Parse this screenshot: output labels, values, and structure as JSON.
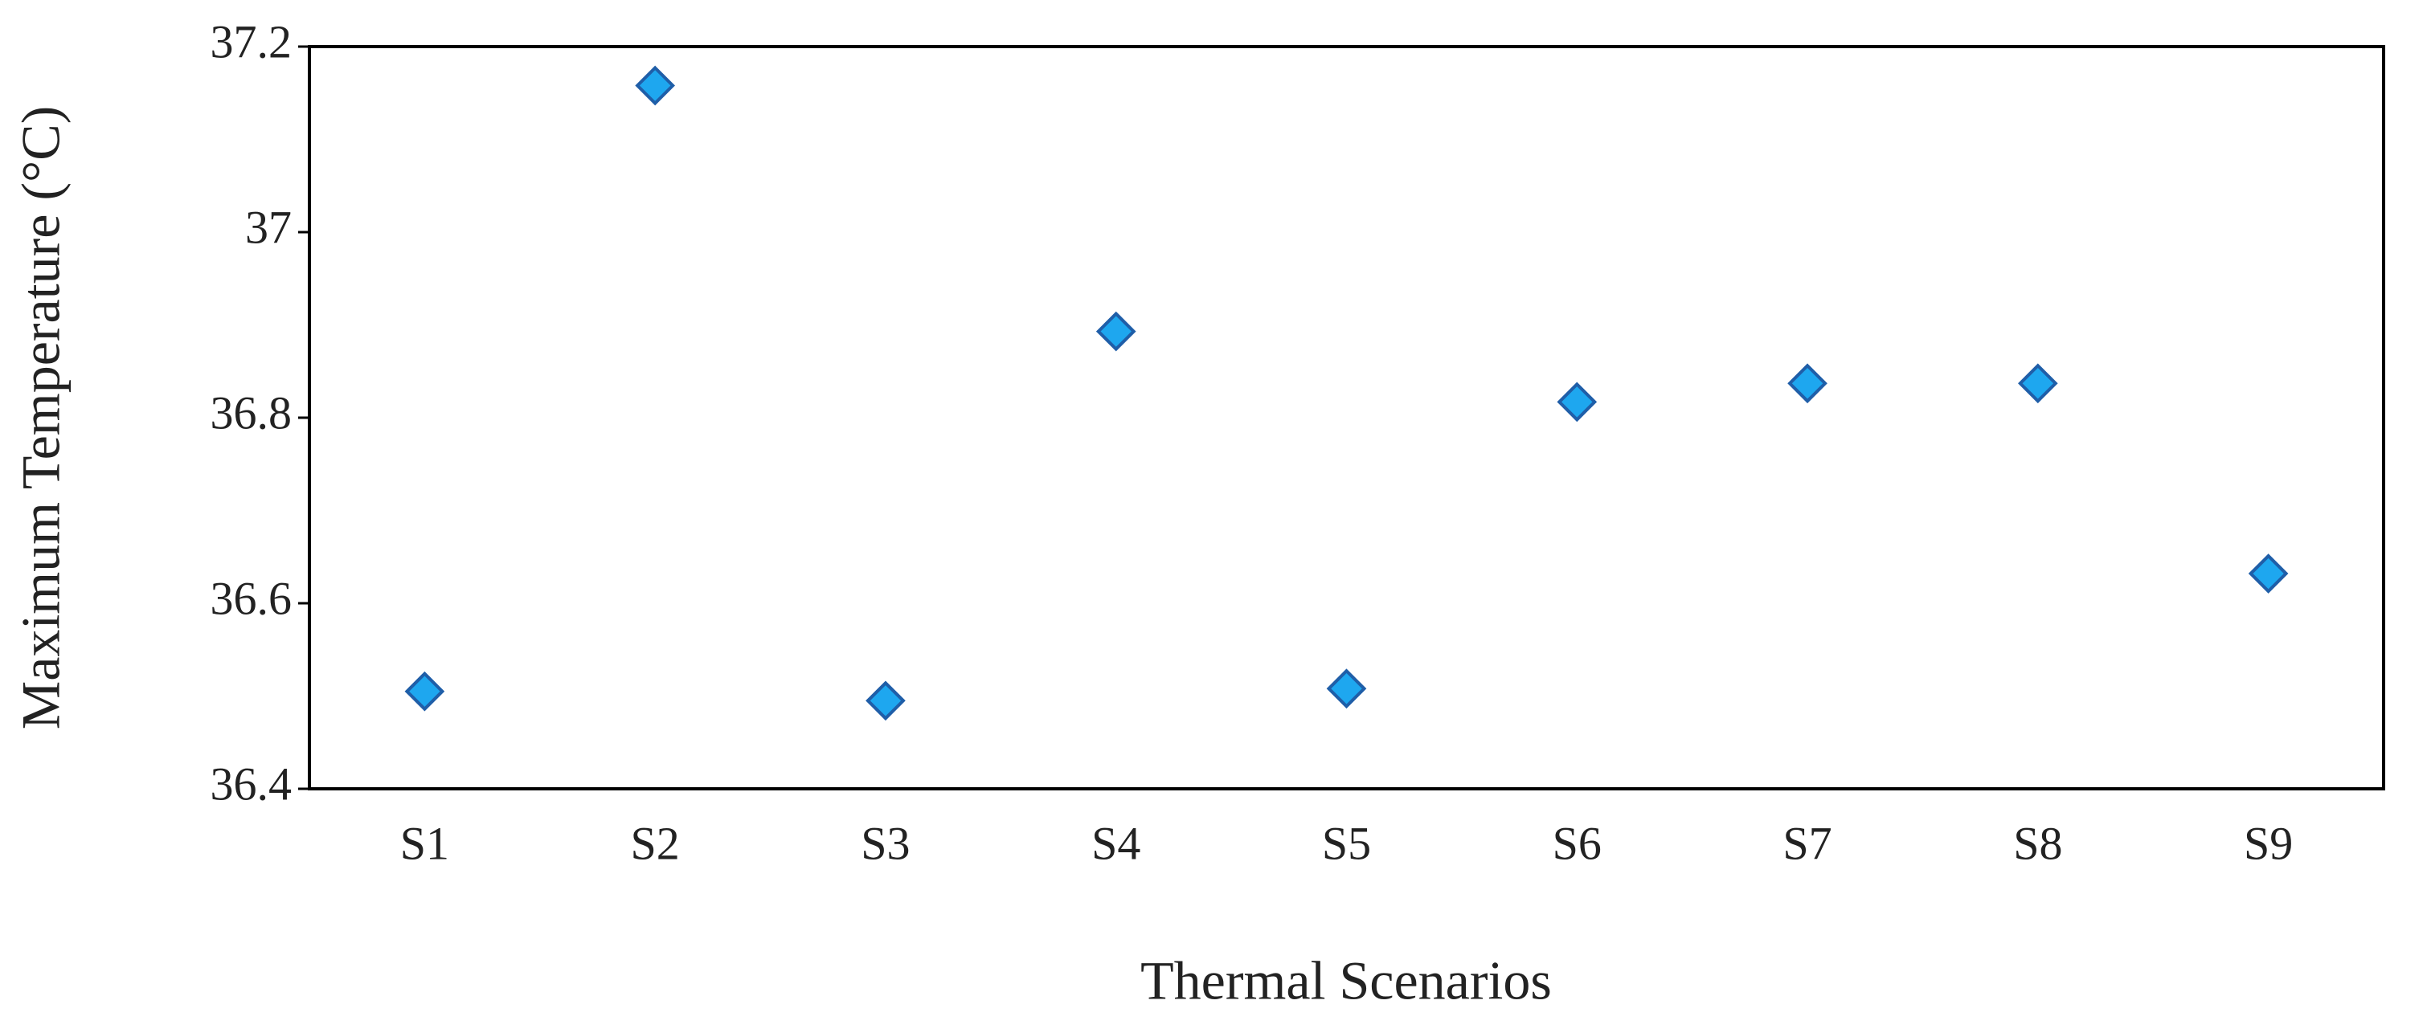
{
  "chart_data": {
    "type": "scatter",
    "xlabel": "Thermal Scenarios",
    "ylabel": "Maximum Temperature (°C)",
    "categories": [
      "S1",
      "S2",
      "S3",
      "S4",
      "S5",
      "S6",
      "S7",
      "S8",
      "S9"
    ],
    "values": [
      36.505,
      37.158,
      36.495,
      36.893,
      36.508,
      36.817,
      36.837,
      36.837,
      36.632
    ],
    "color": "#1ea7ef",
    "edgecolor": "#1f5ea8",
    "ylim": [
      36.4,
      37.2
    ],
    "yticks": [
      36.4,
      36.6,
      36.8,
      37,
      37.2
    ],
    "grid": false
  }
}
